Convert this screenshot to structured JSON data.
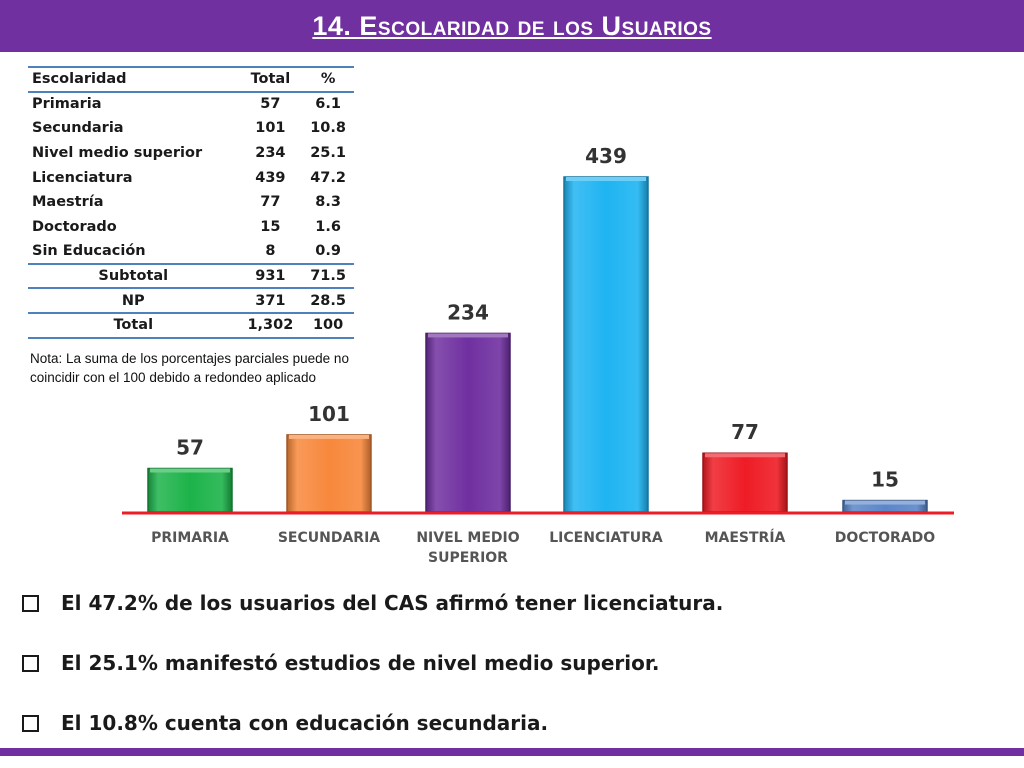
{
  "slide": {
    "title": "14. Escolaridad de los Usuarios",
    "colors": {
      "header": "#7030a0",
      "baseline": "#ee1c25",
      "table_rule": "#4f81bd"
    }
  },
  "table": {
    "headers": [
      "Escolaridad",
      "Total",
      "%"
    ],
    "rows": [
      [
        "Primaria",
        "57",
        "6.1"
      ],
      [
        "Secundaria",
        "101",
        "10.8"
      ],
      [
        "Nivel medio superior",
        "234",
        "25.1"
      ],
      [
        "Licenciatura",
        "439",
        "47.2"
      ],
      [
        "Maestría",
        "77",
        "8.3"
      ],
      [
        "Doctorado",
        "15",
        "1.6"
      ],
      [
        "Sin Educación",
        "8",
        "0.9"
      ]
    ],
    "summary": [
      [
        "Subtotal",
        "931",
        "71.5"
      ],
      [
        "NP",
        "371",
        "28.5"
      ],
      [
        "Total",
        "1,302",
        "100"
      ]
    ],
    "note_line1": "Nota: La suma de los porcentajes parciales puede no",
    "note_line2": "coincidir con el 100 debido a redondeo aplicado"
  },
  "chart_data": {
    "type": "bar",
    "categories": [
      "PRIMARIA",
      "SECUNDARIA",
      "NIVEL MEDIO SUPERIOR",
      "LICENCIATURA",
      "MAESTRÍA",
      "DOCTORADO"
    ],
    "category_lines": [
      [
        "PRIMARIA"
      ],
      [
        "SECUNDARIA"
      ],
      [
        "NIVEL MEDIO",
        "SUPERIOR"
      ],
      [
        "LICENCIATURA"
      ],
      [
        "MAESTRÍA"
      ],
      [
        "DOCTORADO"
      ]
    ],
    "values": [
      57,
      101,
      234,
      439,
      77,
      15
    ],
    "colors": [
      "#1db34a",
      "#f7883c",
      "#7030a0",
      "#1fb4f2",
      "#ee1c25",
      "#5a86c8"
    ],
    "title": "",
    "xlabel": "",
    "ylabel": "",
    "ylim": [
      0,
      439
    ],
    "grid": false,
    "legend": "none"
  },
  "bullets": [
    "El 47.2% de los usuarios del CAS afirmó tener licenciatura.",
    "El 25.1% manifestó estudios de nivel medio superior.",
    "El 10.8% cuenta con educación secundaria."
  ],
  "icons": {
    "bullet": "checkbox-bullet-icon"
  }
}
